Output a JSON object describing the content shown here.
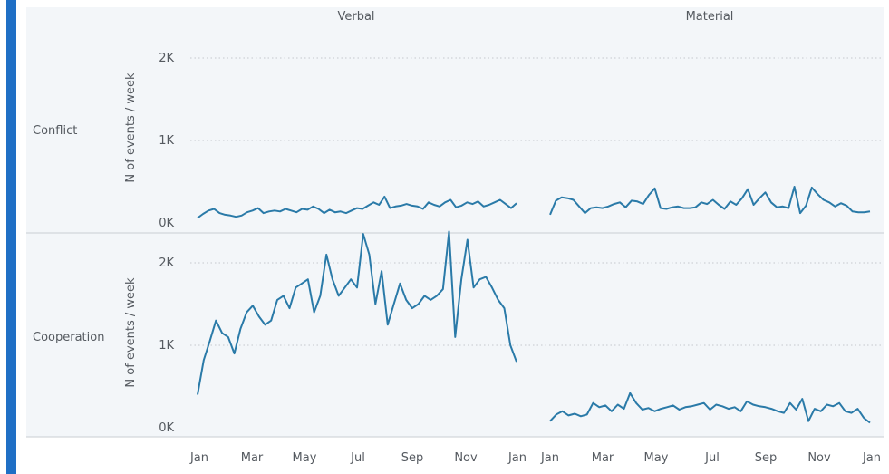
{
  "chart_data": {
    "type": "line",
    "x_ticks": [
      "Jan",
      "Mar",
      "May",
      "Jul",
      "Sep",
      "Nov",
      "Jan"
    ],
    "y_ticks": [
      "0K",
      "1K",
      "2K"
    ],
    "ylabel": "N of events / week",
    "ylim": [
      0,
      2500
    ],
    "grid": true,
    "line_color": "#2a7aa8",
    "accent_bar_color": "#1f6fc5",
    "panel_bg": "#f3f6f9",
    "columns": [
      "Verbal",
      "Material"
    ],
    "rows": [
      "Conflict",
      "Cooperation"
    ],
    "panels": [
      {
        "row": "Conflict",
        "column": "Verbal",
        "values": [
          60,
          110,
          150,
          170,
          120,
          100,
          90,
          75,
          90,
          130,
          150,
          180,
          120,
          140,
          150,
          140,
          170,
          150,
          130,
          170,
          160,
          200,
          170,
          120,
          160,
          130,
          140,
          120,
          150,
          180,
          170,
          210,
          250,
          220,
          320,
          180,
          200,
          210,
          230,
          210,
          200,
          170,
          250,
          220,
          200,
          250,
          280,
          190,
          210,
          250,
          230,
          260,
          200,
          220,
          250,
          280,
          230,
          180,
          240
        ]
      },
      {
        "row": "Conflict",
        "column": "Material",
        "values": [
          100,
          270,
          310,
          300,
          280,
          200,
          120,
          180,
          190,
          180,
          200,
          230,
          250,
          190,
          270,
          260,
          230,
          340,
          420,
          180,
          170,
          190,
          200,
          180,
          180,
          190,
          250,
          230,
          280,
          220,
          170,
          260,
          220,
          300,
          410,
          220,
          300,
          370,
          250,
          190,
          200,
          180,
          440,
          120,
          210,
          430,
          350,
          280,
          250,
          200,
          240,
          210,
          140,
          130,
          130,
          140
        ]
      },
      {
        "row": "Cooperation",
        "column": "Verbal",
        "values": [
          400,
          820,
          1050,
          1300,
          1150,
          1100,
          900,
          1200,
          1400,
          1480,
          1350,
          1250,
          1300,
          1550,
          1600,
          1450,
          1700,
          1750,
          1800,
          1400,
          1600,
          2100,
          1800,
          1600,
          1700,
          1800,
          1700,
          2350,
          2100,
          1500,
          1900,
          1250,
          1500,
          1750,
          1550,
          1450,
          1500,
          1600,
          1550,
          1600,
          1680,
          2380,
          1100,
          1800,
          2280,
          1700,
          1800,
          1830,
          1700,
          1550,
          1450,
          1000,
          800
        ]
      },
      {
        "row": "Cooperation",
        "column": "Material",
        "values": [
          80,
          160,
          200,
          150,
          170,
          140,
          160,
          300,
          250,
          270,
          200,
          280,
          230,
          420,
          300,
          220,
          240,
          200,
          230,
          250,
          270,
          220,
          250,
          260,
          280,
          300,
          220,
          280,
          260,
          230,
          250,
          200,
          320,
          280,
          260,
          250,
          230,
          200,
          180,
          300,
          220,
          350,
          80,
          230,
          200,
          280,
          260,
          300,
          200,
          180,
          230,
          120,
          60
        ]
      }
    ]
  }
}
